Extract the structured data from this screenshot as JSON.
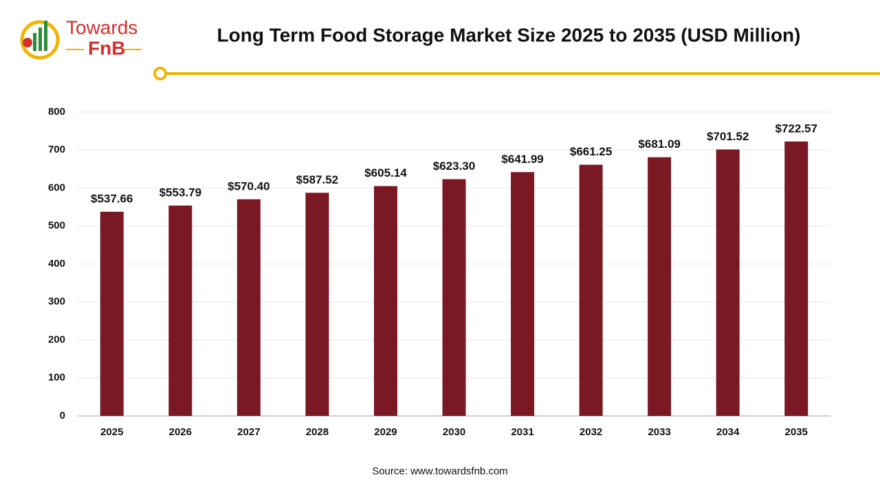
{
  "logo": {
    "line1": "Towards",
    "line2": "FnB"
  },
  "chart_data": {
    "type": "bar",
    "title": "Long Term Food Storage Market Size 2025 to 2035 (USD Million)",
    "source": "Source: www.towardsfnb.com",
    "categories": [
      "2025",
      "2026",
      "2027",
      "2028",
      "2029",
      "2030",
      "2031",
      "2032",
      "2033",
      "2034",
      "2035"
    ],
    "values": [
      537.66,
      553.79,
      570.4,
      587.52,
      605.14,
      623.3,
      641.99,
      661.25,
      681.09,
      701.52,
      722.57
    ],
    "value_labels": [
      "$537.66",
      "$553.79",
      "$570.40",
      "$587.52",
      "$605.14",
      "$623.30",
      "$641.99",
      "$661.25",
      "$681.09",
      "$701.52",
      "$722.57"
    ],
    "color": "#7a1823",
    "ylim": [
      0,
      800
    ],
    "yticks": [
      0,
      100,
      200,
      300,
      400,
      500,
      600,
      700,
      800
    ],
    "grid": true
  }
}
